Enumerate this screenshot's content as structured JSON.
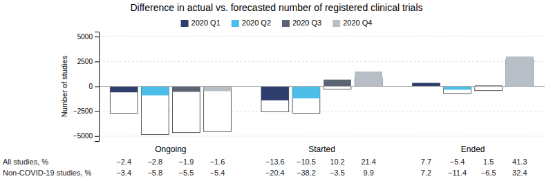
{
  "chart_data": {
    "type": "bar",
    "title": "Difference in actual vs. forecasted number of registered clinical trials",
    "ylabel": "Number of studies",
    "categories": [
      "Ongoing",
      "Started",
      "Ended"
    ],
    "series": [
      {
        "name": "2020 Q1",
        "color": "#2e3f6e",
        "values": [
          -600,
          -1400,
          340
        ],
        "non_covid_values": [
          -2700,
          -2550,
          310
        ]
      },
      {
        "name": "2020 Q2",
        "color": "#4abde8",
        "values": [
          -900,
          -1200,
          -330
        ],
        "non_covid_values": [
          -4850,
          -2700,
          -720
        ]
      },
      {
        "name": "2020 Q3",
        "color": "#5a6472",
        "values": [
          -550,
          680,
          95
        ],
        "non_covid_values": [
          -4650,
          -280,
          -430
        ]
      },
      {
        "name": "2020 Q4",
        "color": "#b8bec5",
        "values": [
          -480,
          1500,
          3000
        ],
        "non_covid_values": [
          -4550,
          870,
          2720
        ]
      }
    ],
    "table": [
      {
        "label": "All studies, %",
        "values": [
          -2.4,
          -2.8,
          -1.9,
          -1.6,
          -13.6,
          -10.5,
          10.2,
          21.4,
          7.7,
          -5.4,
          1.5,
          41.3
        ],
        "value_labels": [
          "−2.4",
          "−2.8",
          "−1.9",
          "−1.6",
          "−13.6",
          "−10.5",
          "10.2",
          "21.4",
          "7.7",
          "−5.4",
          "1.5",
          "41.3"
        ]
      },
      {
        "label": "Non-COVID-19 studies, %",
        "values": [
          -3.4,
          -5.8,
          -5.5,
          -5.4,
          -20.4,
          -38.2,
          -3.5,
          9.9,
          7.2,
          -11.4,
          -6.5,
          32.4
        ],
        "value_labels": [
          "−3.4",
          "−5.8",
          "−5.5",
          "−5.4",
          "−20.4",
          "−38.2",
          "−3.5",
          "9.9",
          "7.2",
          "−11.4",
          "−6.5",
          "32.4"
        ]
      }
    ],
    "ylim": [
      -5500,
      5500
    ],
    "yticks": [
      {
        "value": -5000,
        "label": "−5000"
      },
      {
        "value": -2500,
        "label": "−2500"
      },
      0,
      2500,
      5000
    ],
    "grid": true,
    "legend": "top"
  }
}
